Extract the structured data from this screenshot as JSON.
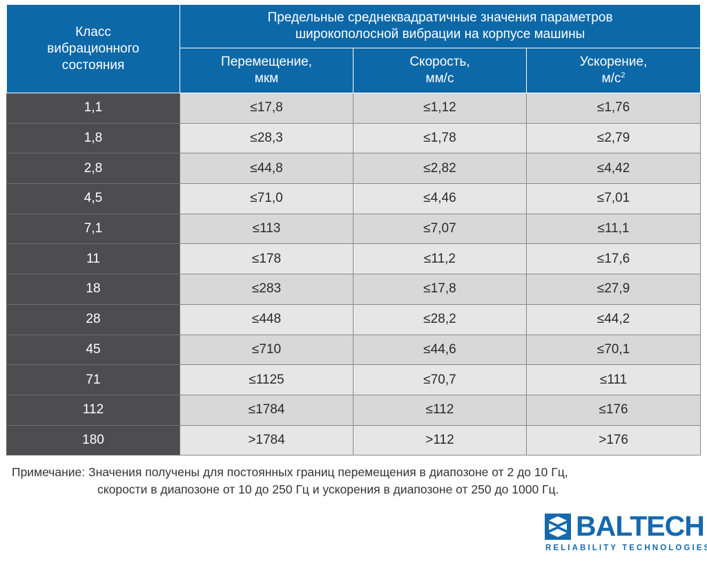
{
  "table": {
    "class_header": "Класс вибрационного состояния",
    "group_header": "Предельные среднеквадратичные значения параметров широкополосной вибрации на корпусе машины",
    "col_displacement": "Перемещение,",
    "col_displacement_unit": "мкм",
    "col_velocity": "Скорость,",
    "col_velocity_unit": "мм/с",
    "col_acceleration": "Ускорение,",
    "col_acceleration_unit": "м/с",
    "col_acceleration_unit_sup": "2",
    "rows": [
      {
        "cls": "1,1",
        "disp": "≤17,8",
        "vel": "≤1,12",
        "acc": "≤1,76"
      },
      {
        "cls": "1,8",
        "disp": "≤28,3",
        "vel": "≤1,78",
        "acc": "≤2,79"
      },
      {
        "cls": "2,8",
        "disp": "≤44,8",
        "vel": "≤2,82",
        "acc": "≤4,42"
      },
      {
        "cls": "4,5",
        "disp": "≤71,0",
        "vel": "≤4,46",
        "acc": "≤7,01"
      },
      {
        "cls": "7,1",
        "disp": "≤113",
        "vel": "≤7,07",
        "acc": "≤11,1"
      },
      {
        "cls": "11",
        "disp": "≤178",
        "vel": "≤11,2",
        "acc": "≤17,6"
      },
      {
        "cls": "18",
        "disp": "≤283",
        "vel": "≤17,8",
        "acc": "≤27,9"
      },
      {
        "cls": "28",
        "disp": "≤448",
        "vel": "≤28,2",
        "acc": "≤44,2"
      },
      {
        "cls": "45",
        "disp": "≤710",
        "vel": "≤44,6",
        "acc": "≤70,1"
      },
      {
        "cls": "71",
        "disp": "≤1125",
        "vel": "≤70,7",
        "acc": "≤111"
      },
      {
        "cls": "112",
        "disp": "≤1784",
        "vel": "≤112",
        "acc": "≤176"
      },
      {
        "cls": "180",
        "disp": ">1784",
        "vel": ">112",
        "acc": ">176"
      }
    ]
  },
  "note": {
    "line1": "Примечание: Значения получены для постоянных границ перемещения в диапозоне от 2 до 10 Гц,",
    "line2": "скорости в диапозоне от 10 до 250 Гц и ускорения в диапозоне от 250 до 1000 Гц."
  },
  "logo": {
    "name": "BALTECH",
    "tagline": "RELIABILITY TECHNOLOGIES",
    "icon": "baltech-logo-icon",
    "color": "#1669ad"
  },
  "colors": {
    "header_bg": "#0d68a8",
    "class_col_bg": "#4d4d4f",
    "row_light": "#e6e6e6",
    "row_dark": "#d8d8d8"
  }
}
